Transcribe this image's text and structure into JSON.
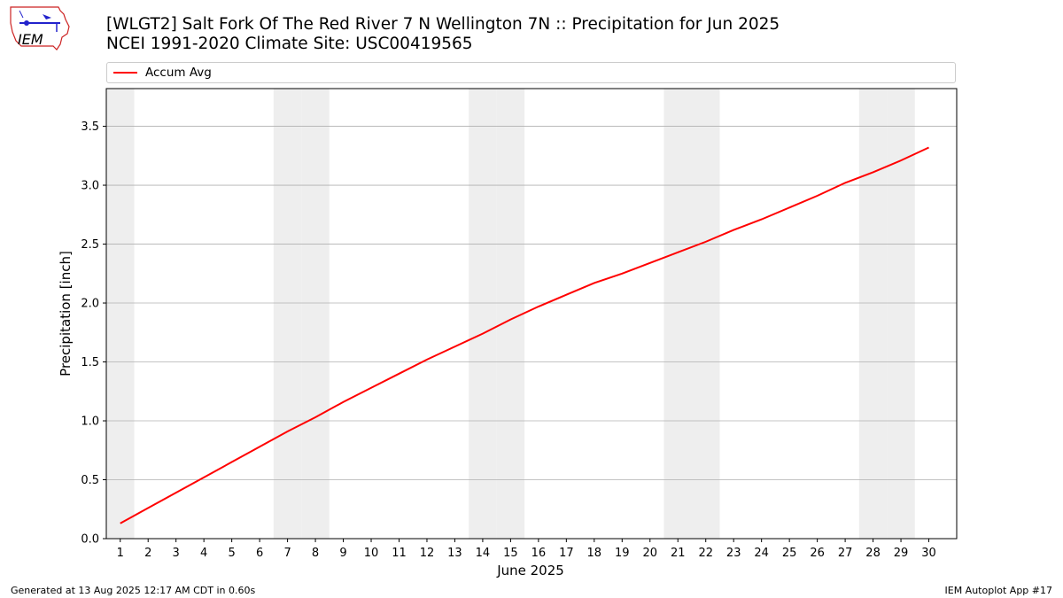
{
  "header": {
    "title_line1": "[WLGT2] Salt Fork Of The Red River 7 N Wellington 7N :: Precipitation for Jun 2025",
    "title_line2": "NCEI 1991-2020 Climate Site: USC00419565",
    "logo_text": "IEM"
  },
  "footer": {
    "generated": "Generated at 13 Aug 2025 12:17 AM CDT in 0.60s",
    "app": "IEM Autoplot App #17"
  },
  "colors": {
    "series": "#ff0000",
    "weekend_band": "#eeeeee",
    "grid": "#b0b0b0"
  },
  "chart_data": {
    "type": "line",
    "title": "[WLGT2] Salt Fork Of The Red River 7 N Wellington 7N :: Precipitation for Jun 2025",
    "xlabel": "June 2025",
    "ylabel": "Precipitation [inch]",
    "x": [
      1,
      2,
      3,
      4,
      5,
      6,
      7,
      8,
      9,
      10,
      11,
      12,
      13,
      14,
      15,
      16,
      17,
      18,
      19,
      20,
      21,
      22,
      23,
      24,
      25,
      26,
      27,
      28,
      29,
      30
    ],
    "xlim": [
      0.5,
      31
    ],
    "ylim": [
      0,
      3.82
    ],
    "yticks": [
      0.0,
      0.5,
      1.0,
      1.5,
      2.0,
      2.5,
      3.0,
      3.5
    ],
    "ytick_labels": [
      "0.0",
      "0.5",
      "1.0",
      "1.5",
      "2.0",
      "2.5",
      "3.0",
      "3.5"
    ],
    "grid": "horizontal",
    "legend_position": "top",
    "weekend_days": [
      1,
      7,
      8,
      14,
      15,
      21,
      22,
      28,
      29
    ],
    "series": [
      {
        "name": "Accum Avg",
        "values": [
          0.13,
          0.26,
          0.39,
          0.52,
          0.65,
          0.78,
          0.91,
          1.03,
          1.16,
          1.28,
          1.4,
          1.52,
          1.63,
          1.74,
          1.86,
          1.97,
          2.07,
          2.17,
          2.25,
          2.34,
          2.43,
          2.52,
          2.62,
          2.71,
          2.81,
          2.91,
          3.02,
          3.11,
          3.21,
          3.32
        ]
      }
    ]
  }
}
